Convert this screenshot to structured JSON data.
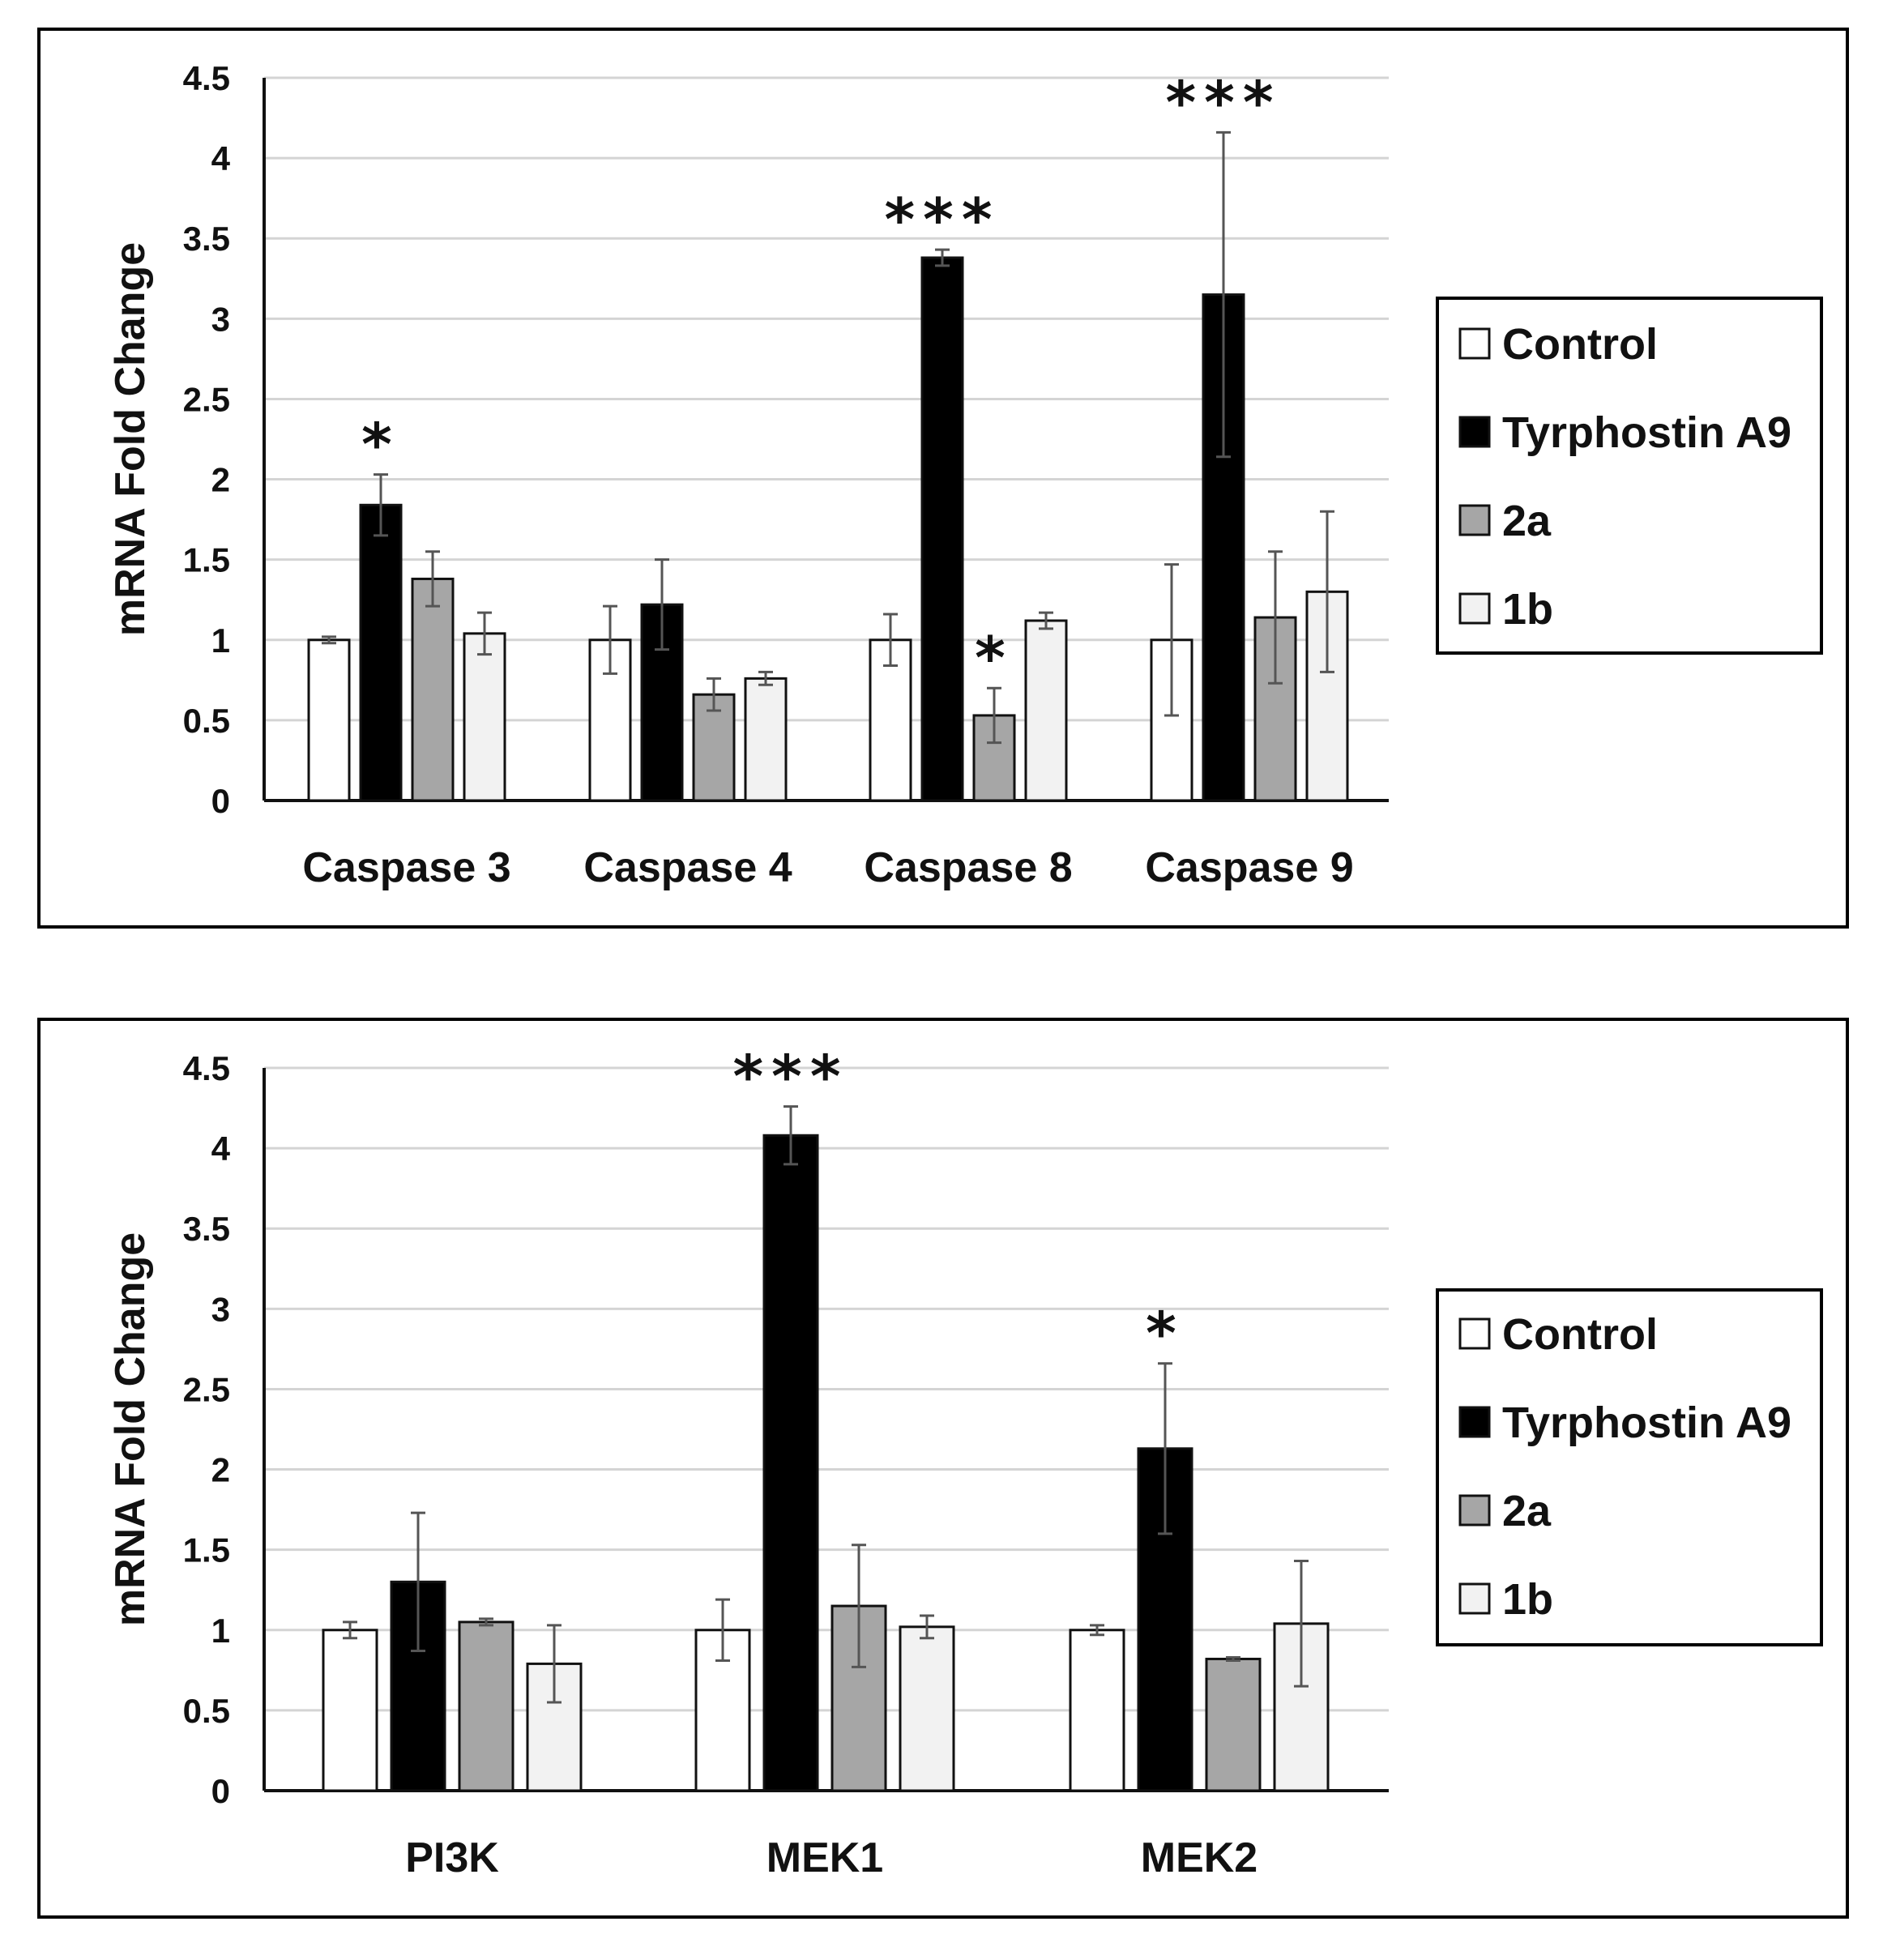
{
  "series_names": [
    "Control",
    "Tyrphostin A9",
    "2a",
    "1b"
  ],
  "colors": {
    "Control": "#ffffff",
    "Tyrphostin A9": "#000000",
    "2a": "#a6a6a6",
    "1b": "#f2f2f2",
    "bar_stroke": "#111111",
    "frame": "#000000"
  },
  "chart_data": [
    {
      "type": "bar",
      "title": "",
      "xlabel": "",
      "ylabel": "mRNA Fold Change",
      "ylim": [
        0,
        4.5
      ],
      "yticks": [
        "0",
        "0.5",
        "1",
        "1.5",
        "2",
        "2.5",
        "3",
        "3.5",
        "4",
        "4.5"
      ],
      "legend_position": "right",
      "categories": [
        "Caspase 3",
        "Caspase 4",
        "Caspase 8",
        "Caspase 9"
      ],
      "series": [
        {
          "name": "Control",
          "values": [
            1.0,
            1.0,
            1.0,
            1.0
          ],
          "errors": [
            0.02,
            0.21,
            0.16,
            0.47
          ]
        },
        {
          "name": "Tyrphostin A9",
          "values": [
            1.84,
            1.22,
            3.38,
            3.15
          ],
          "errors": [
            0.19,
            0.28,
            0.05,
            1.01
          ]
        },
        {
          "name": "2a",
          "values": [
            1.38,
            0.66,
            0.53,
            1.14
          ],
          "errors": [
            0.17,
            0.1,
            0.17,
            0.41
          ]
        },
        {
          "name": "1b",
          "values": [
            1.04,
            0.76,
            1.12,
            1.3
          ],
          "errors": [
            0.13,
            0.04,
            0.05,
            0.5
          ]
        }
      ],
      "annotations": [
        {
          "category": "Caspase 3",
          "series": "Tyrphostin A9",
          "text": "*"
        },
        {
          "category": "Caspase 8",
          "series": "Tyrphostin A9",
          "text": "***"
        },
        {
          "category": "Caspase 8",
          "series": "2a",
          "text": "*"
        },
        {
          "category": "Caspase 9",
          "series": "Tyrphostin A9",
          "text": "***"
        }
      ]
    },
    {
      "type": "bar",
      "title": "",
      "xlabel": "",
      "ylabel": "mRNA Fold Change",
      "ylim": [
        0,
        4.5
      ],
      "yticks": [
        "0",
        "0.5",
        "1",
        "1.5",
        "2",
        "2.5",
        "3",
        "3.5",
        "4",
        "4.5"
      ],
      "legend_position": "right",
      "categories": [
        "PI3K",
        "MEK1",
        "MEK2"
      ],
      "series": [
        {
          "name": "Control",
          "values": [
            1.0,
            1.0,
            1.0
          ],
          "errors": [
            0.05,
            0.19,
            0.03
          ]
        },
        {
          "name": "Tyrphostin A9",
          "values": [
            1.3,
            4.08,
            2.13
          ],
          "errors": [
            0.43,
            0.18,
            0.53
          ]
        },
        {
          "name": "2a",
          "values": [
            1.05,
            1.15,
            0.82
          ],
          "errors": [
            0.02,
            0.38,
            0.01
          ]
        },
        {
          "name": "1b",
          "values": [
            0.79,
            1.02,
            1.04
          ],
          "errors": [
            0.24,
            0.07,
            0.39
          ]
        }
      ],
      "annotations": [
        {
          "category": "MEK1",
          "series": "Tyrphostin A9",
          "text": "***"
        },
        {
          "category": "MEK2",
          "series": "Tyrphostin A9",
          "text": "*"
        }
      ]
    }
  ]
}
